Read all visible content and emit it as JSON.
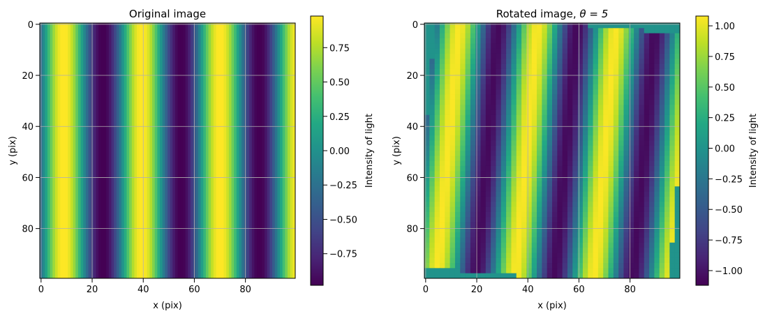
{
  "chart_data": [
    {
      "type": "heatmap",
      "title": "Original image",
      "xlabel": "x (pix)",
      "ylabel": "y (pix)",
      "xlim": [
        0,
        99
      ],
      "ylim": [
        99,
        0
      ],
      "xticks": [
        "0",
        "20",
        "40",
        "60",
        "80"
      ],
      "yticks": [
        "0",
        "20",
        "40",
        "60",
        "80"
      ],
      "grid": true,
      "colormap": "viridis",
      "z_formula": "sin(2*pi*x/30.6 - 0.26); pattern is constant along y",
      "peak_x": [
        8,
        39,
        69
      ],
      "trough_x": [
        23,
        54,
        85
      ],
      "colorbar": {
        "label": "Intensity of light",
        "range": [
          -0.98,
          0.98
        ],
        "ticks": [
          "0.75",
          "0.50",
          "0.25",
          "0.00",
          "−0.25",
          "−0.50",
          "−0.75"
        ]
      }
    },
    {
      "type": "heatmap",
      "title": "Rotated image, ",
      "title_math": "θ = 5",
      "xlabel": "x (pix)",
      "ylabel": "y (pix)",
      "xlim": [
        0,
        99
      ],
      "ylim": [
        99,
        0
      ],
      "xticks": [
        "0",
        "20",
        "40",
        "60",
        "80"
      ],
      "yticks": [
        "0",
        "20",
        "40",
        "60",
        "80"
      ],
      "grid": true,
      "colormap": "viridis",
      "rotation_degrees": 5,
      "fill_value_outside": 0,
      "colorbar": {
        "label": "Intensity of light",
        "range": [
          -1.12,
          1.08
        ],
        "ticks": [
          "1.00",
          "0.75",
          "0.50",
          "0.25",
          "0.00",
          "−0.25",
          "−0.50",
          "−0.75",
          "−1.00"
        ]
      }
    }
  ]
}
